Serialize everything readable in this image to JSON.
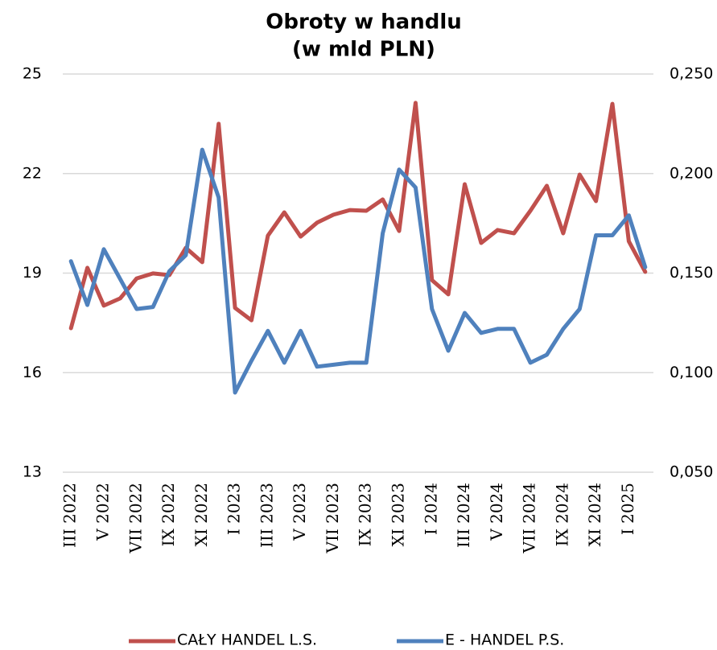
{
  "chart_data": {
    "type": "line",
    "title": [
      "Obroty w handlu",
      "(w mld PLN)"
    ],
    "categories": [
      "III 2022",
      null,
      "V 2022",
      null,
      "VII 2022",
      null,
      "IX 2022",
      null,
      "XI 2022",
      null,
      "I 2023",
      null,
      "III 2023",
      null,
      "V 2023",
      null,
      "VII 2023",
      null,
      "IX 2023",
      null,
      "XI 2023",
      null,
      "I 2024",
      null,
      "III 2024",
      null,
      "V 2024",
      null,
      "VII 2024",
      null,
      "IX 2024",
      null,
      "XI 2024",
      null,
      "I 2025",
      null
    ],
    "series": [
      {
        "name": "CAŁY HANDEL L.S.",
        "color": "#c0504d",
        "axis": "y",
        "values": [
          17.34,
          19.16,
          18.02,
          18.24,
          18.84,
          18.99,
          18.94,
          19.76,
          19.33,
          23.5,
          17.95,
          17.58,
          20.13,
          20.83,
          20.1,
          20.52,
          20.76,
          20.9,
          20.88,
          21.22,
          20.27,
          24.13,
          18.79,
          18.36,
          21.68,
          19.91,
          20.3,
          20.2,
          20.88,
          21.63,
          20.2,
          21.97,
          21.17,
          24.1,
          19.96,
          19.04
        ]
      },
      {
        "name": "E - HANDEL P.S.",
        "color": "#4f81bd",
        "axis": "y2",
        "values": [
          0.156,
          0.134,
          0.162,
          0.147,
          0.132,
          0.133,
          0.151,
          0.159,
          0.212,
          0.188,
          0.09,
          0.106,
          0.121,
          0.105,
          0.121,
          0.103,
          0.104,
          0.105,
          0.105,
          0.17,
          0.202,
          0.193,
          0.132,
          0.111,
          0.13,
          0.12,
          0.122,
          0.122,
          0.105,
          0.109,
          0.122,
          0.132,
          0.169,
          0.169,
          0.179,
          0.153
        ]
      }
    ],
    "ylim": [
      13,
      25
    ],
    "yticks": [
      13,
      16,
      19,
      22,
      25
    ],
    "y2lim": [
      0.05,
      0.25
    ],
    "y2ticks": [
      {
        "value": 0.05,
        "label": "0,050"
      },
      {
        "value": 0.1,
        "label": "0,100"
      },
      {
        "value": 0.15,
        "label": "0,150"
      },
      {
        "value": 0.2,
        "label": "0,200"
      },
      {
        "value": 0.25,
        "label": "0,250"
      }
    ],
    "grid": true,
    "legend": "bottom"
  }
}
